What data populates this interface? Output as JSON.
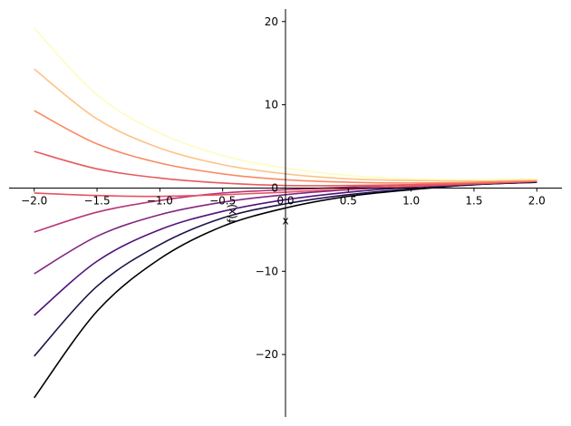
{
  "chart_data": {
    "type": "line",
    "title": "",
    "xlabel": "x",
    "ylabel": "f(x)",
    "xlim": [
      -2.2,
      2.2
    ],
    "ylim": [
      -27.5,
      21.5
    ],
    "x_ticks": [
      -2.0,
      -1.5,
      -1.0,
      -0.5,
      0.0,
      0.5,
      1.0,
      1.5,
      2.0
    ],
    "x_tick_labels": [
      "−2.0",
      "−1.5",
      "−1.0",
      "−0.5",
      "0.0",
      "0.5",
      "1.0",
      "1.5",
      "2.0"
    ],
    "y_ticks": [
      -20,
      -10,
      0,
      10,
      20
    ],
    "y_tick_labels": [
      "−20",
      "−10",
      "0",
      "10",
      "20"
    ],
    "grid": false,
    "legend": "none",
    "x": [
      -2.0,
      -1.5,
      -1.0,
      -0.5,
      0.0,
      0.5,
      1.0,
      1.5,
      2.0
    ],
    "series": [
      {
        "color": "#000004",
        "values": [
          -25.2,
          -14.8,
          -8.5,
          -4.6,
          -2.4,
          -1.0,
          -0.2,
          0.4,
          0.7
        ]
      },
      {
        "color": "#1d1147",
        "values": [
          -20.2,
          -11.8,
          -6.8,
          -3.6,
          -1.9,
          -0.8,
          -0.1,
          0.4,
          0.7
        ]
      },
      {
        "color": "#51127c",
        "values": [
          -15.3,
          -8.8,
          -5.0,
          -2.8,
          -1.4,
          -0.5,
          0.1,
          0.5,
          0.8
        ]
      },
      {
        "color": "#822681",
        "values": [
          -10.3,
          -5.8,
          -3.2,
          -1.7,
          -0.8,
          -0.2,
          0.2,
          0.5,
          0.8
        ]
      },
      {
        "color": "#b73779",
        "values": [
          -5.3,
          -2.9,
          -1.5,
          -0.6,
          -0.2,
          0.1,
          0.4,
          0.6,
          0.9
        ]
      },
      {
        "color": "#e75263",
        "values": [
          -0.6,
          -0.9,
          -1.0,
          -0.8,
          -0.5,
          -0.1,
          0.2,
          0.5,
          0.8
        ]
      },
      {
        "color": "#e75a5d",
        "values": [
          4.4,
          2.3,
          1.2,
          0.6,
          0.3,
          0.3,
          0.4,
          0.6,
          0.9
        ]
      },
      {
        "color": "#fb8861",
        "values": [
          9.3,
          5.3,
          3.0,
          1.7,
          1.0,
          0.7,
          0.6,
          0.7,
          0.9
        ]
      },
      {
        "color": "#fec287",
        "values": [
          14.3,
          8.3,
          4.8,
          2.8,
          1.7,
          1.1,
          0.9,
          0.9,
          1.0
        ]
      },
      {
        "color": "#fcfdbf",
        "values": [
          19.2,
          11.2,
          6.6,
          3.9,
          2.4,
          1.5,
          1.1,
          1.0,
          1.1
        ]
      }
    ]
  }
}
